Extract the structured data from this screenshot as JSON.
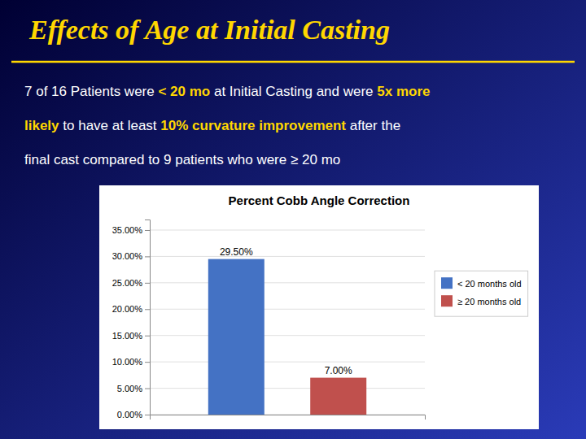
{
  "title": "Effects of Age at Initial Casting",
  "title_color": "#FFD700",
  "body_text_lines": [
    [
      {
        "text": "7 of 16 Patients were ",
        "color": "#FFFFFF",
        "bold": false
      },
      {
        "text": "< 20 mo",
        "color": "#FFD700",
        "bold": true
      },
      {
        "text": " at Initial Casting and were ",
        "color": "#FFFFFF",
        "bold": false
      },
      {
        "text": "5x more",
        "color": "#FFD700",
        "bold": true
      }
    ],
    [
      {
        "text": "likely",
        "color": "#FFD700",
        "bold": true
      },
      {
        "text": " to have at least ",
        "color": "#FFFFFF",
        "bold": false
      },
      {
        "text": "10% curvature improvement",
        "color": "#FFD700",
        "bold": true
      },
      {
        "text": " after the",
        "color": "#FFFFFF",
        "bold": false
      }
    ],
    [
      {
        "text": "final cast compared to 9 patients who were ≥ 20 mo",
        "color": "#FFFFFF",
        "bold": false
      }
    ]
  ],
  "chart_data": {
    "type": "bar",
    "title": "Percent Cobb Angle Correction",
    "categories": [
      null
    ],
    "series": [
      {
        "name": "< 20 months old",
        "color": "#4472C4",
        "values": [
          29.5
        ],
        "value_labels": [
          "29.50%"
        ]
      },
      {
        "name": "≥ 20 months old",
        "color": "#C0504D",
        "values": [
          7.0
        ],
        "value_labels": [
          "7.00%"
        ]
      }
    ],
    "ylim": [
      0,
      37
    ],
    "yticks": [
      {
        "value": 0,
        "label": "0.00%"
      },
      {
        "value": 5,
        "label": "5.00%"
      },
      {
        "value": 10,
        "label": "10.00%"
      },
      {
        "value": 15,
        "label": "15.00%"
      },
      {
        "value": 20,
        "label": "20.00%"
      },
      {
        "value": 25,
        "label": "25.00%"
      },
      {
        "value": 30,
        "label": "30.00%"
      },
      {
        "value": 35,
        "label": "35.00%"
      }
    ],
    "grid": true,
    "legend": "right",
    "data_labels": true
  }
}
